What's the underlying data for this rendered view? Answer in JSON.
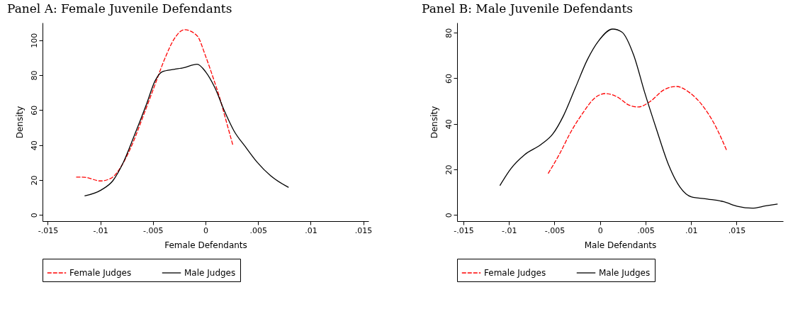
{
  "chart_data": [
    {
      "type": "line",
      "title": "Panel A: Female Juvenile Defendants",
      "xlabel": "Female Defendants",
      "ylabel": "Density",
      "legend": "bottom",
      "grid": false,
      "marker": "none",
      "xlim": [
        -0.0155,
        0.0155
      ],
      "ylim": [
        -3.5,
        110
      ],
      "xticks": [
        {
          "value": -0.015,
          "label": "-.015"
        },
        {
          "value": -0.01,
          "label": "-.01"
        },
        {
          "value": -0.005,
          "label": "-.005"
        },
        0,
        {
          "value": 0.005,
          "label": ".005"
        },
        {
          "value": 0.01,
          "label": ".01"
        },
        {
          "value": 0.015,
          "label": ".015"
        }
      ],
      "yticks": [
        0,
        20,
        40,
        60,
        80,
        100
      ],
      "series": [
        {
          "name": "Female Judges",
          "color": "#ff0000",
          "line_style": "dashed",
          "x": [
            -0.0123,
            -0.0115,
            -0.01,
            -0.009,
            -0.0079,
            -0.007,
            -0.0059,
            -0.0049,
            -0.0039,
            -0.003,
            -0.002,
            -0.0008,
            0.0,
            0.0007,
            0.0014,
            0.002,
            0.0026
          ],
          "values": [
            21.7,
            21.6,
            19.5,
            21,
            29,
            40,
            57,
            73,
            89,
            100.5,
            106,
            102.5,
            91,
            79,
            66,
            53,
            40
          ]
        },
        {
          "name": "Male Judges",
          "color": "#000000",
          "line_style": "solid",
          "x": [
            -0.0115,
            -0.0099,
            -0.0088,
            -0.0079,
            -0.0068,
            -0.0056,
            -0.0048,
            -0.0041,
            -0.003,
            -0.0021,
            -0.0008,
            0.0,
            0.0009,
            0.0018,
            0.0027,
            0.0038,
            0.0049,
            0.0062,
            0.0079
          ],
          "values": [
            10.9,
            14.4,
            19.7,
            29,
            45,
            63.6,
            76.7,
            82,
            83.3,
            84.2,
            86.2,
            82,
            72.7,
            59.5,
            48.2,
            39,
            30.3,
            22.4,
            15.8
          ]
        }
      ]
    },
    {
      "type": "line",
      "title": "Panel B: Male Juvenile Defendants",
      "xlabel": "Male Defendants",
      "ylabel": "Density",
      "legend": "bottom",
      "grid": false,
      "marker": "none",
      "xlim": [
        -0.0157,
        0.0201
      ],
      "ylim": [
        -2.7,
        84.4
      ],
      "xticks": [
        {
          "value": -0.015,
          "label": "-.015"
        },
        {
          "value": -0.01,
          "label": "-.01"
        },
        {
          "value": -0.005,
          "label": "-.005"
        },
        0,
        {
          "value": 0.005,
          "label": ".005"
        },
        {
          "value": 0.01,
          "label": ".01"
        },
        {
          "value": 0.015,
          "label": ".015"
        }
      ],
      "yticks": [
        0,
        20,
        40,
        60,
        80
      ],
      "series": [
        {
          "name": "Female Judges",
          "color": "#ff0000",
          "line_style": "dashed",
          "x": [
            -0.0057,
            -0.0045,
            -0.0032,
            -0.0019,
            -0.0006,
            0.0006,
            0.0019,
            0.0032,
            0.0042,
            0.0055,
            0.007,
            0.0084,
            0.0098,
            0.0111,
            0.0126,
            0.0139
          ],
          "values": [
            18.2,
            26.4,
            36.5,
            44.7,
            51.3,
            53.3,
            51.8,
            48.2,
            47.4,
            49.8,
            54.9,
            56.4,
            53.8,
            48.8,
            39.6,
            28.4
          ]
        },
        {
          "name": "Male Judges",
          "color": "#000000",
          "line_style": "solid",
          "x": [
            -0.011,
            -0.0098,
            -0.0083,
            -0.0065,
            -0.0052,
            -0.004,
            -0.0027,
            -0.0014,
            -0.0002,
            0.0014,
            0.0024,
            0.0037,
            0.0049,
            0.0062,
            0.0075,
            0.0088,
            0.01,
            0.0118,
            0.0136,
            0.0151,
            0.0167,
            0.0182,
            0.0195
          ],
          "values": [
            12.9,
            20.3,
            26.4,
            30.9,
            35.5,
            43.7,
            55.9,
            68.1,
            76.2,
            81.6,
            80.3,
            70.1,
            53.8,
            37.6,
            22.3,
            12.1,
            8.0,
            7.0,
            5.8,
            3.8,
            3,
            4.0,
            4.8
          ]
        }
      ]
    }
  ]
}
